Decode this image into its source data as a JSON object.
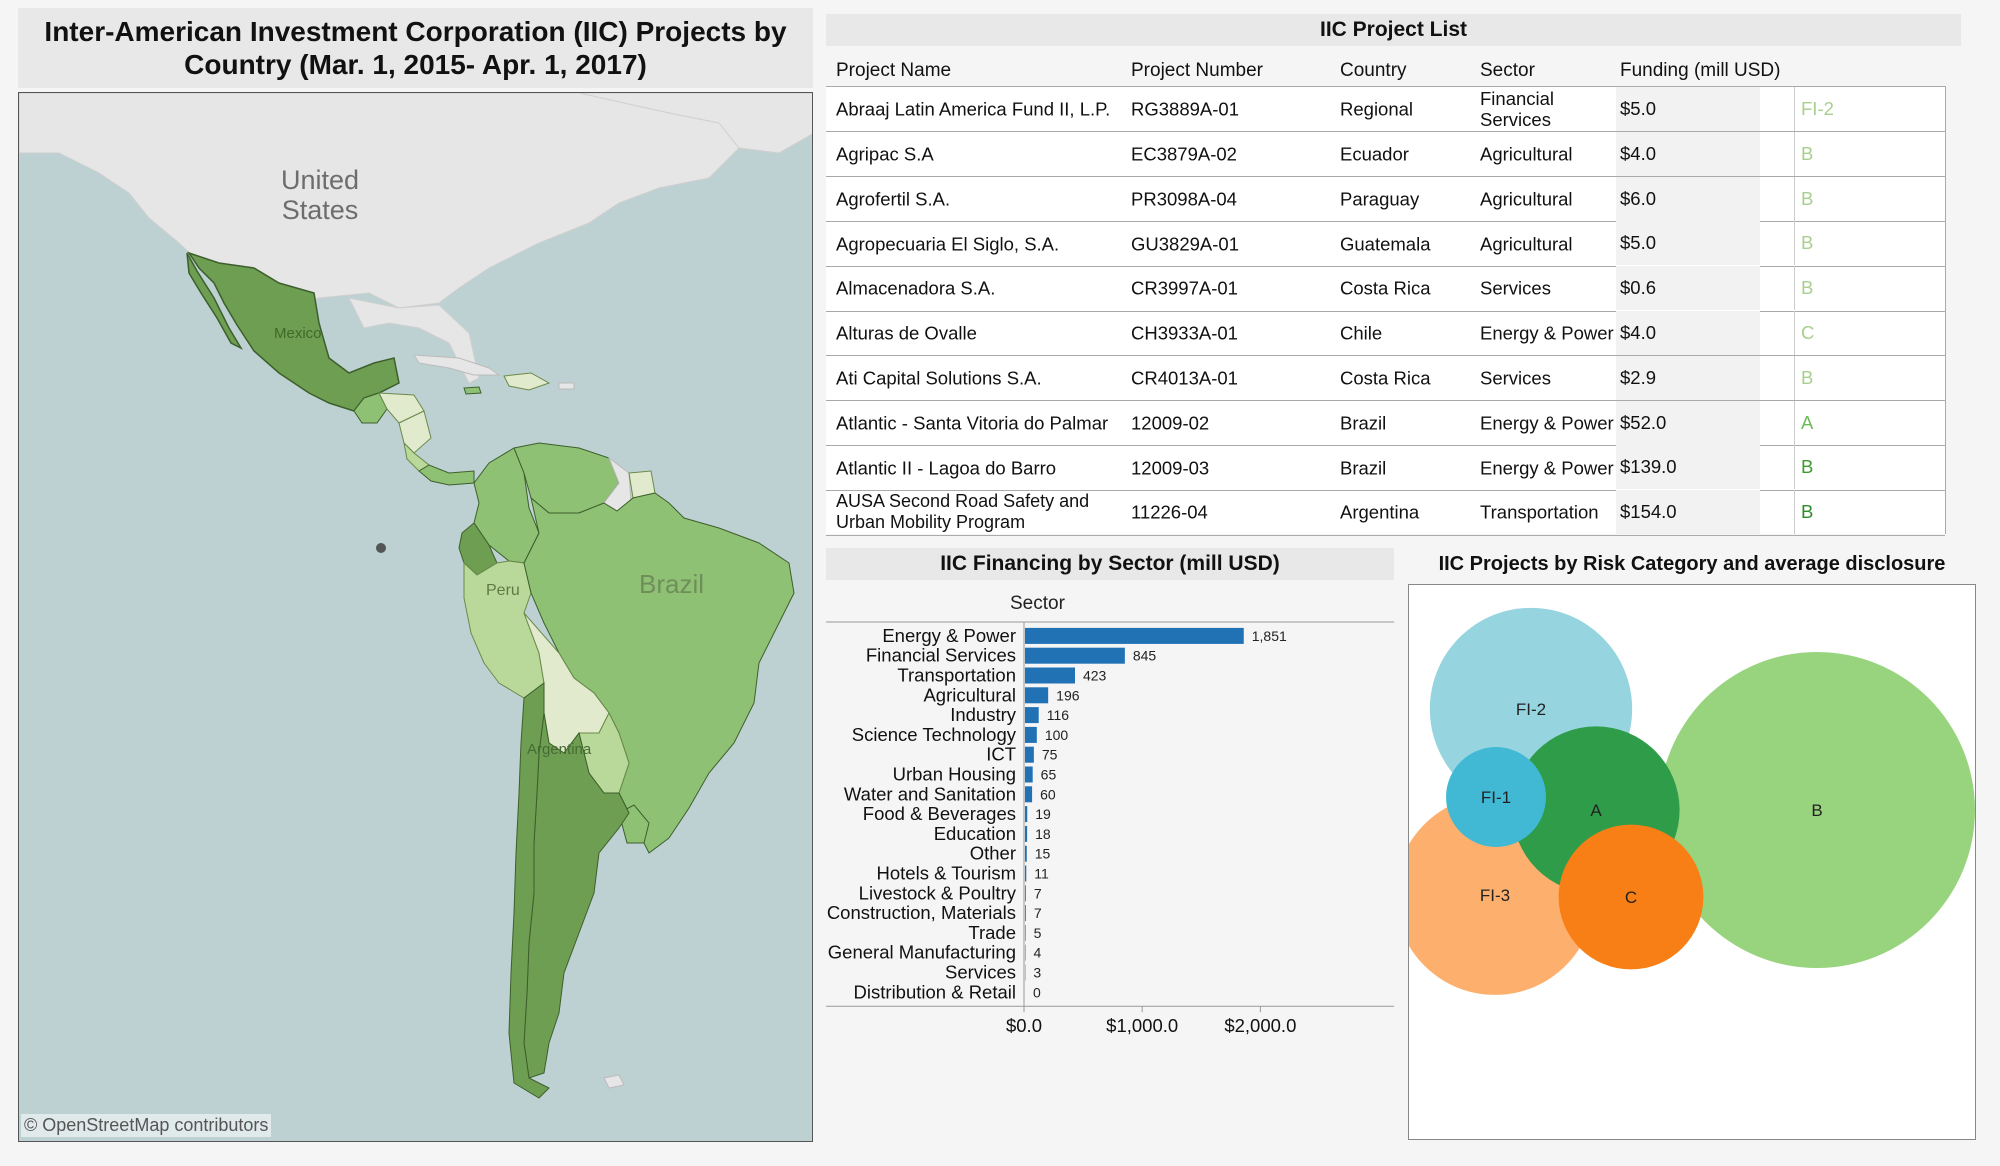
{
  "map": {
    "title": "Inter-American Investment Corporation (IIC) Projects by Country (Mar. 1, 2015- Apr. 1, 2017)",
    "labels": {
      "united_states": "United\nStates",
      "mexico": "Mexico",
      "peru": "Peru",
      "brazil": "Brazil",
      "argentina": "Argentina"
    },
    "credit": "© OpenStreetMap contributors",
    "colors": {
      "water": "#bdd1d3",
      "land_no_data": "#e6e6e6",
      "dark_green": "#6e9e52",
      "mid_green": "#8fc174",
      "light_green": "#b9d99a",
      "pale_green": "#e1eacc"
    }
  },
  "project_list": {
    "title": "IIC Project List",
    "headers": [
      "Project Name",
      "Project Number",
      "Country",
      "Sector",
      "Funding (mill USD)"
    ],
    "rows": [
      {
        "name": "Abraaj Latin America Fund II, L.P.",
        "number": "RG3889A-01",
        "country": "Regional",
        "sector": "Financial Services",
        "funding": "$5.0",
        "risk": "FI-2",
        "risk_color": "#a8cf8f"
      },
      {
        "name": "Agripac S.A",
        "number": "EC3879A-02",
        "country": "Ecuador",
        "sector": "Agricultural",
        "funding": "$4.0",
        "risk": "B",
        "risk_color": "#a8cf8f"
      },
      {
        "name": "Agrofertil S.A.",
        "number": "PR3098A-04",
        "country": "Paraguay",
        "sector": "Agricultural",
        "funding": "$6.0",
        "risk": "B",
        "risk_color": "#a8cf8f"
      },
      {
        "name": "Agropecuaria El Siglo, S.A.",
        "number": "GU3829A-01",
        "country": "Guatemala",
        "sector": "Agricultural",
        "funding": "$5.0",
        "risk": "B",
        "risk_color": "#a8cf8f"
      },
      {
        "name": "Almacenadora S.A.",
        "number": "CR3997A-01",
        "country": "Costa Rica",
        "sector": "Services",
        "funding": "$0.6",
        "risk": "B",
        "risk_color": "#a8cf8f"
      },
      {
        "name": "Alturas de Ovalle",
        "number": "CH3933A-01",
        "country": "Chile",
        "sector": "Energy & Power",
        "funding": "$4.0",
        "risk": "C",
        "risk_color": "#a8cf8f"
      },
      {
        "name": "Ati Capital Solutions S.A.",
        "number": "CR4013A-01",
        "country": "Costa Rica",
        "sector": "Services",
        "funding": "$2.9",
        "risk": "B",
        "risk_color": "#a8cf8f"
      },
      {
        "name": "Atlantic - Santa Vitoria do Palmar",
        "number": "12009-02",
        "country": "Brazil",
        "sector": "Energy & Power",
        "funding": "$52.0",
        "risk": "A",
        "risk_color": "#6dbb5a"
      },
      {
        "name": "Atlantic II - Lagoa do Barro",
        "number": "12009-03",
        "country": "Brazil",
        "sector": "Energy & Power",
        "funding": "$139.0",
        "risk": "B",
        "risk_color": "#3f9a2f"
      },
      {
        "name": "AUSA Second Road Safety and Urban Mobility Program",
        "number": "11226-04",
        "country": "Argentina",
        "sector": "Transportation",
        "funding": "$154.0",
        "risk": "B",
        "risk_color": "#2e8b2a"
      }
    ]
  },
  "sector_chart": {
    "title": "IIC Financing by Sector (mill USD)",
    "axis_title": "Sector",
    "bar_color": "#2171b5",
    "tick_labels": [
      "$0.0",
      "$1,000.0",
      "$2,000.0"
    ]
  },
  "chart_data": [
    {
      "type": "bar",
      "orientation": "horizontal",
      "title": "IIC Financing by Sector (mill USD)",
      "ylabel": "Sector",
      "categories": [
        "Energy & Power",
        "Financial Services",
        "Transportation",
        "Agricultural",
        "Industry",
        "Science Technology",
        "ICT",
        "Urban Housing",
        "Water and Sanitation",
        "Food & Beverages",
        "Education",
        "Other",
        "Hotels & Tourism",
        "Livestock & Poultry",
        "Construction, Materials",
        "Trade",
        "General Manufacturing",
        "Services",
        "Distribution & Retail"
      ],
      "values": [
        1851,
        845,
        423,
        196,
        116,
        100,
        75,
        65,
        60,
        19,
        18,
        15,
        11,
        7,
        7,
        5,
        4,
        3,
        0
      ],
      "value_labels": [
        "1,851",
        "845",
        "423",
        "196",
        "116",
        "100",
        "75",
        "65",
        "60",
        "19",
        "18",
        "15",
        "11",
        "7",
        "7",
        "5",
        "4",
        "3",
        "0"
      ],
      "xlim": [
        0,
        2200
      ],
      "xticks": [
        0,
        1000,
        2000
      ],
      "grid": false
    },
    {
      "type": "bubble",
      "title": "IIC Projects by Risk Category and average disclosure periods",
      "labels": [
        "B",
        "FI-2",
        "FI-3",
        "A",
        "C",
        "FI-1"
      ],
      "relative_size": [
        1.0,
        0.41,
        0.4,
        0.28,
        0.21,
        0.1
      ],
      "colors": [
        "#98d47e",
        "#96d5e0",
        "#fdb06e",
        "#2e9c48",
        "#f77f16",
        "#42b9d4"
      ]
    }
  ]
}
